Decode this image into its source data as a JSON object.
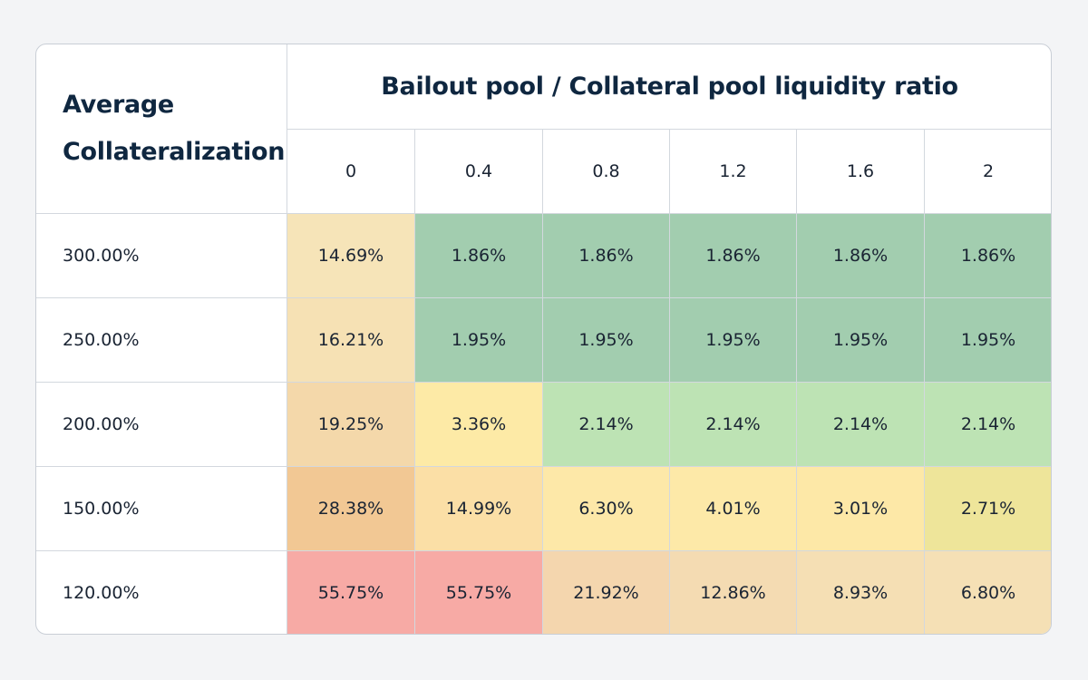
{
  "chart_data": {
    "type": "heatmap",
    "title": "",
    "row_header_label": [
      "Average",
      "Collateralization"
    ],
    "column_group_label": "Bailout pool / Collateral pool liquidity ratio",
    "columns": [
      "0",
      "0.4",
      "0.8",
      "1.2",
      "1.6",
      "2"
    ],
    "rows": [
      {
        "label": "300.00%",
        "values": [
          "14.69%",
          "1.86%",
          "1.86%",
          "1.86%",
          "1.86%",
          "1.86%"
        ],
        "colors": [
          "#f6e4b8",
          "#a2cdaf",
          "#a2cdaf",
          "#a2cdaf",
          "#a2cdaf",
          "#a2cdaf"
        ]
      },
      {
        "label": "250.00%",
        "values": [
          "16.21%",
          "1.95%",
          "1.95%",
          "1.95%",
          "1.95%",
          "1.95%"
        ],
        "colors": [
          "#f6e1b4",
          "#a2cdaf",
          "#a2cdaf",
          "#a2cdaf",
          "#a2cdaf",
          "#a2cdaf"
        ]
      },
      {
        "label": "200.00%",
        "values": [
          "19.25%",
          "3.36%",
          "2.14%",
          "2.14%",
          "2.14%",
          "2.14%"
        ],
        "colors": [
          "#f4d8aa",
          "#fdeaa6",
          "#bde3b4",
          "#bde3b4",
          "#bde3b4",
          "#bde3b4"
        ]
      },
      {
        "label": "150.00%",
        "values": [
          "28.38%",
          "14.99%",
          "6.30%",
          "4.01%",
          "3.01%",
          "2.71%"
        ],
        "colors": [
          "#f2c894",
          "#fbdfa6",
          "#fde8a8",
          "#fde9a8",
          "#fde8a7",
          "#eee59a"
        ]
      },
      {
        "label": "120.00%",
        "values": [
          "55.75%",
          "55.75%",
          "21.92%",
          "12.86%",
          "8.93%",
          "6.80%"
        ],
        "colors": [
          "#f7aaa5",
          "#f7aaa5",
          "#f4d6ae",
          "#f4dbb2",
          "#f5dfb4",
          "#f5e0b5"
        ]
      }
    ]
  }
}
